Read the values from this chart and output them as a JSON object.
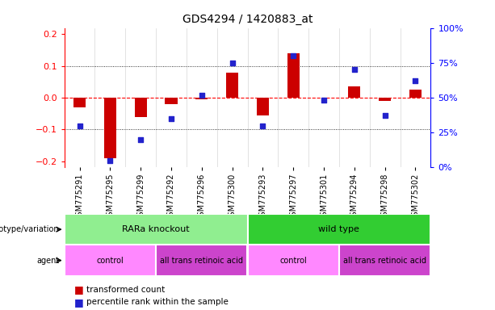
{
  "title": "GDS4294 / 1420883_at",
  "samples": [
    "GSM775291",
    "GSM775295",
    "GSM775299",
    "GSM775292",
    "GSM775296",
    "GSM775300",
    "GSM775293",
    "GSM775297",
    "GSM775301",
    "GSM775294",
    "GSM775298",
    "GSM775302"
  ],
  "transformed_count": [
    -0.03,
    -0.19,
    -0.06,
    -0.02,
    -0.005,
    0.08,
    -0.055,
    0.14,
    0.0,
    0.035,
    -0.01,
    0.025
  ],
  "percentile_rank": [
    30,
    5,
    20,
    35,
    52,
    75,
    30,
    80,
    48,
    70,
    37,
    62
  ],
  "genotype_groups": [
    {
      "label": "RARa knockout",
      "start": 0,
      "end": 6,
      "color": "#90EE90"
    },
    {
      "label": "wild type",
      "start": 6,
      "end": 12,
      "color": "#32CD32"
    }
  ],
  "agent_groups": [
    {
      "label": "control",
      "start": 0,
      "end": 3,
      "color": "#FF88FF"
    },
    {
      "label": "all trans retinoic acid",
      "start": 3,
      "end": 6,
      "color": "#CC44CC"
    },
    {
      "label": "control",
      "start": 6,
      "end": 9,
      "color": "#FF88FF"
    },
    {
      "label": "all trans retinoic acid",
      "start": 9,
      "end": 12,
      "color": "#CC44CC"
    }
  ],
  "bar_color_red": "#CC0000",
  "dot_color_blue": "#2222CC",
  "ylim_left": [
    -0.22,
    0.22
  ],
  "ylim_right": [
    0,
    100
  ],
  "yticks_left": [
    -0.2,
    -0.1,
    0.0,
    0.1,
    0.2
  ],
  "yticks_right": [
    0,
    25,
    50,
    75,
    100
  ],
  "ytick_labels_right": [
    "0%",
    "25%",
    "50%",
    "75%",
    "100%"
  ],
  "hline_dotted": [
    0.1,
    -0.1
  ],
  "legend_red": "transformed count",
  "legend_blue": "percentile rank within the sample",
  "background_color": "#ffffff",
  "plot_bg": "#ffffff",
  "bar_width": 0.4,
  "dot_size": 20
}
